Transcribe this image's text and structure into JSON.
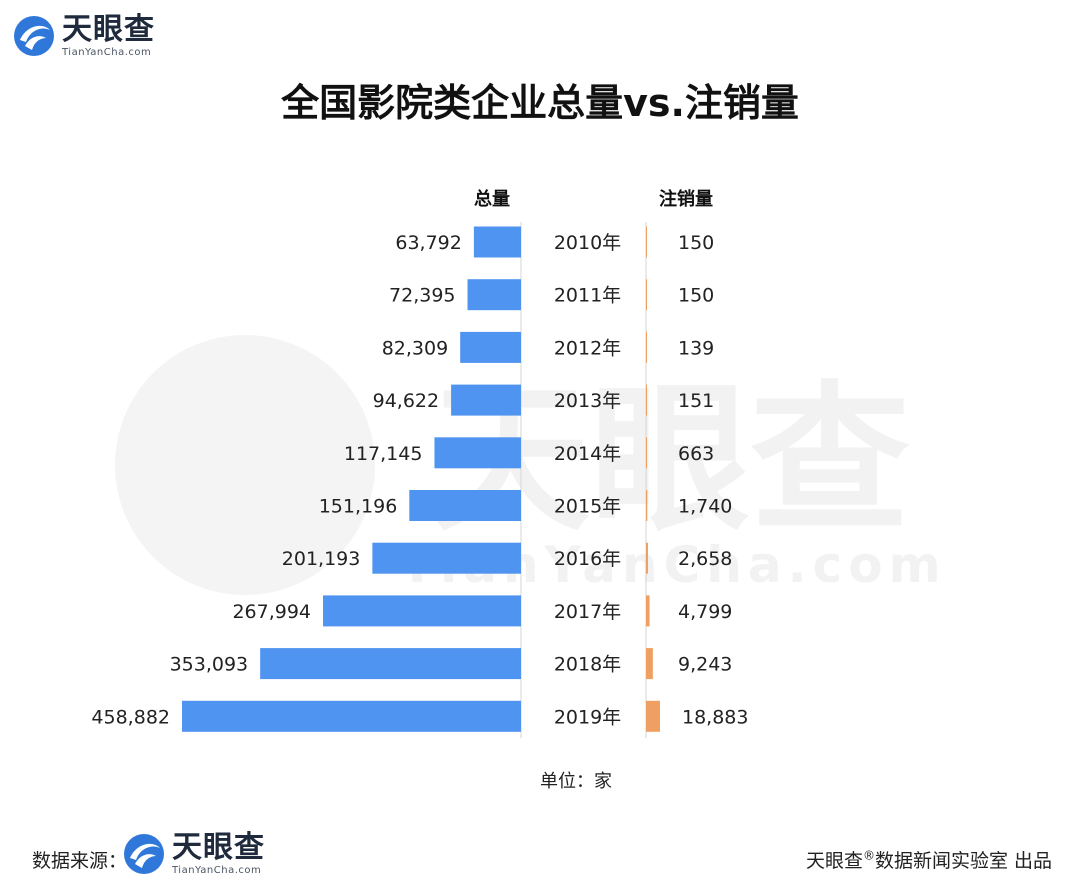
{
  "brand": {
    "name_cn": "天眼查",
    "name_en": "TianYanCha.com",
    "watermark_cn": "天眼查",
    "watermark_en": "TianYanCha.com"
  },
  "title": "全国影院类企业总量vs.注销量",
  "headers": {
    "left": "总量",
    "right": "注销量"
  },
  "unit": {
    "label": "单位：",
    "value": "家"
  },
  "footer": {
    "source_label": "数据来源：",
    "credit_prefix": "天眼查",
    "credit_mark": "®",
    "credit_suffix": "数据新闻实验室 出品"
  },
  "colors": {
    "total_bar": "#4f94f0",
    "cancel_bar": "#ef9f62",
    "axis": "#d6d6d6",
    "logo_blue": "#2f78d9"
  },
  "chart_data": {
    "type": "bar",
    "orientation": "horizontal-mirrored",
    "title": "全国影院类企业总量vs.注销量",
    "categories": [
      "2010年",
      "2011年",
      "2012年",
      "2013年",
      "2014年",
      "2015年",
      "2016年",
      "2017年",
      "2018年",
      "2019年"
    ],
    "series": [
      {
        "name": "总量",
        "values": [
          63792,
          72395,
          82309,
          94622,
          117145,
          151196,
          201193,
          267994,
          353093,
          458882
        ],
        "labels": [
          "63,792",
          "72,395",
          "82,309",
          "94,622",
          "117,145",
          "151,196",
          "201,193",
          "267,994",
          "353,093",
          "458,882"
        ]
      },
      {
        "name": "注销量",
        "values": [
          150,
          150,
          139,
          151,
          663,
          1740,
          2658,
          4799,
          9243,
          18883
        ],
        "labels": [
          "150",
          "150",
          "139",
          "151",
          "663",
          "1,740",
          "2,658",
          "4,799",
          "9,243",
          "18,883"
        ]
      }
    ],
    "unit": "家",
    "grid": false,
    "legend": "column headers"
  }
}
